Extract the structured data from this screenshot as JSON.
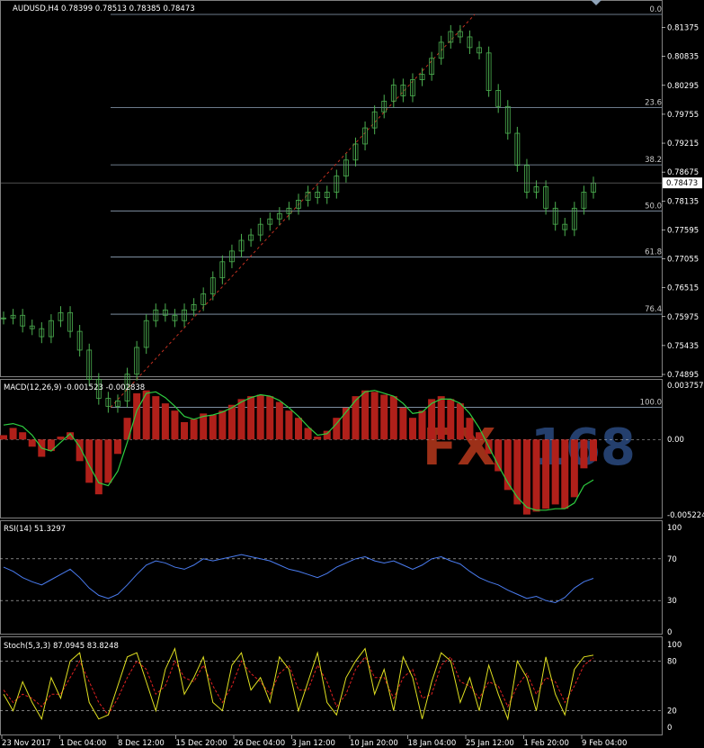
{
  "colors": {
    "background": "#000000",
    "candle": "#4caf50",
    "fib_line": "#8fa3b8",
    "grid": "#c8c8c8",
    "macd_hist": "#b0201a",
    "macd_signal": "#2ecc40",
    "rsi": "#4a7cf0",
    "stoch_main": "#e0e020",
    "stoch_signal": "#e02020",
    "watermark_fx": "#d04020",
    "watermark_168": "#2a4a80"
  },
  "main": {
    "header": "AUDUSD,H4  0.78399 0.78513 0.78385 0.78473",
    "watermark": {
      "fx": "FX",
      "num": "168"
    },
    "current_price": "0.78473",
    "price_ticks": [
      "0.81375",
      "0.80835",
      "0.80295",
      "0.79755",
      "0.79215",
      "0.78675",
      "0.78135",
      "0.77595",
      "0.77055",
      "0.76515",
      "0.75975",
      "0.75435",
      "0.74895"
    ],
    "fib_levels": [
      {
        "label": "0.0",
        "price": 0.8162
      },
      {
        "label": "23.6",
        "price": 0.7988
      },
      {
        "label": "38.2",
        "price": 0.7881
      },
      {
        "label": "50.0",
        "price": 0.7795
      },
      {
        "label": "61.8",
        "price": 0.7709
      },
      {
        "label": "76.4",
        "price": 0.7602
      },
      {
        "label": "100.0",
        "price": 0.7428
      }
    ]
  },
  "macd": {
    "header": "MACD(12,26,9) -0.001523 -0.002838",
    "ticks": [
      "0.003757",
      "0.00",
      "-0.005224"
    ]
  },
  "rsi": {
    "header": "RSI(14) 51.3297",
    "ticks": [
      "100",
      "70",
      "30",
      "0"
    ]
  },
  "stoch": {
    "header": "Stoch(5,3,3) 87.0945 83.8248",
    "ticks": [
      "100",
      "80",
      "20",
      "0"
    ]
  },
  "x_axis": [
    "23 Nov 2017",
    "1 Dec 04:00",
    "8 Dec 12:00",
    "15 Dec 20:00",
    "26 Dec 04:00",
    "3 Jan 12:00",
    "10 Jan 20:00",
    "18 Jan 04:00",
    "25 Jan 12:00",
    "1 Feb 20:00",
    "9 Feb 04:00"
  ],
  "chart_data": {
    "type": "line",
    "title": "AUDUSD,H4",
    "x_labels": [
      "23 Nov 2017",
      "1 Dec 04:00",
      "8 Dec 12:00",
      "15 Dec 20:00",
      "26 Dec 04:00",
      "3 Jan 12:00",
      "10 Jan 20:00",
      "18 Jan 04:00",
      "25 Jan 12:00",
      "1 Feb 20:00",
      "9 Feb 04:00"
    ],
    "price_series": [
      0.7595,
      0.76,
      0.758,
      0.7575,
      0.756,
      0.759,
      0.7605,
      0.757,
      0.7535,
      0.748,
      0.7445,
      0.743,
      0.744,
      0.749,
      0.754,
      0.759,
      0.761,
      0.76,
      0.759,
      0.761,
      0.762,
      0.764,
      0.767,
      0.77,
      0.772,
      0.774,
      0.775,
      0.777,
      0.778,
      0.779,
      0.78,
      0.7815,
      0.783,
      0.782,
      0.783,
      0.786,
      0.789,
      0.792,
      0.795,
      0.798,
      0.8,
      0.803,
      0.801,
      0.804,
      0.805,
      0.808,
      0.811,
      0.813,
      0.812,
      0.81,
      0.809,
      0.802,
      0.799,
      0.794,
      0.788,
      0.783,
      0.784,
      0.78,
      0.777,
      0.776,
      0.78,
      0.783,
      0.7847
    ],
    "price_ylim": [
      0.74895,
      0.8162
    ],
    "macd_hist": [
      0.0003,
      0.0008,
      0.0005,
      -0.0005,
      -0.0012,
      -0.0008,
      0.0002,
      0.0005,
      -0.0015,
      -0.003,
      -0.0038,
      -0.003,
      -0.001,
      0.0015,
      0.0032,
      0.0034,
      0.003,
      0.0025,
      0.002,
      0.0012,
      0.0014,
      0.0018,
      0.0017,
      0.002,
      0.0024,
      0.0028,
      0.003,
      0.0031,
      0.003,
      0.0026,
      0.002,
      0.0015,
      0.0008,
      0.0002,
      0.0006,
      0.0015,
      0.0022,
      0.003,
      0.0034,
      0.0033,
      0.0031,
      0.003,
      0.0022,
      0.0015,
      0.002,
      0.0028,
      0.003,
      0.0028,
      0.0025,
      0.0015,
      0.0005,
      -0.001,
      -0.0022,
      -0.0035,
      -0.0045,
      -0.0052,
      -0.005,
      -0.0048,
      -0.0045,
      -0.0048,
      -0.004,
      -0.002,
      -0.0015
    ],
    "macd_signal": [
      0.001,
      0.0011,
      0.0009,
      0.0003,
      -0.0006,
      -0.0008,
      -0.0002,
      0.0004,
      -0.0005,
      -0.0018,
      -0.003,
      -0.0032,
      -0.0022,
      -0.0002,
      0.002,
      0.0032,
      0.0033,
      0.0029,
      0.0023,
      0.0016,
      0.0014,
      0.0016,
      0.0017,
      0.0019,
      0.0022,
      0.0026,
      0.0029,
      0.0031,
      0.003,
      0.0027,
      0.0022,
      0.0016,
      0.0009,
      0.0003,
      0.0004,
      0.0011,
      0.0019,
      0.0027,
      0.0033,
      0.0034,
      0.0032,
      0.003,
      0.0025,
      0.0018,
      0.0019,
      0.0025,
      0.0028,
      0.0028,
      0.0025,
      0.0018,
      0.0008,
      -0.0005,
      -0.0018,
      -0.003,
      -0.004,
      -0.0047,
      -0.0049,
      -0.0049,
      -0.0048,
      -0.0048,
      -0.0044,
      -0.0032,
      -0.0028
    ],
    "macd_ylim": [
      -0.005224,
      0.003757
    ],
    "rsi": [
      62,
      58,
      52,
      48,
      45,
      50,
      55,
      60,
      52,
      42,
      35,
      32,
      36,
      45,
      55,
      64,
      68,
      66,
      62,
      60,
      64,
      70,
      68,
      70,
      72,
      74,
      72,
      70,
      68,
      64,
      60,
      58,
      55,
      52,
      56,
      62,
      66,
      70,
      72,
      68,
      66,
      68,
      64,
      60,
      64,
      70,
      72,
      68,
      65,
      58,
      52,
      48,
      45,
      40,
      36,
      32,
      34,
      30,
      28,
      33,
      42,
      48,
      51.3
    ],
    "rsi_ylim": [
      0,
      100
    ],
    "stoch_main": [
      40,
      20,
      55,
      30,
      10,
      60,
      35,
      80,
      90,
      30,
      10,
      15,
      50,
      85,
      90,
      55,
      20,
      70,
      95,
      40,
      60,
      85,
      30,
      20,
      75,
      90,
      45,
      60,
      30,
      85,
      70,
      20,
      55,
      90,
      30,
      15,
      60,
      80,
      95,
      40,
      70,
      20,
      85,
      60,
      10,
      55,
      90,
      80,
      30,
      60,
      20,
      75,
      40,
      10,
      80,
      60,
      20,
      85,
      40,
      15,
      70,
      85,
      87.1
    ],
    "stoch_signal": [
      45,
      30,
      40,
      35,
      25,
      40,
      40,
      60,
      80,
      55,
      30,
      15,
      35,
      60,
      80,
      70,
      40,
      50,
      80,
      60,
      55,
      75,
      50,
      30,
      50,
      80,
      65,
      55,
      40,
      65,
      75,
      45,
      45,
      75,
      55,
      25,
      40,
      70,
      85,
      60,
      60,
      35,
      60,
      70,
      35,
      40,
      75,
      85,
      55,
      50,
      35,
      55,
      50,
      25,
      50,
      65,
      40,
      60,
      55,
      30,
      50,
      75,
      83.8
    ],
    "stoch_ylim": [
      0,
      100
    ]
  }
}
